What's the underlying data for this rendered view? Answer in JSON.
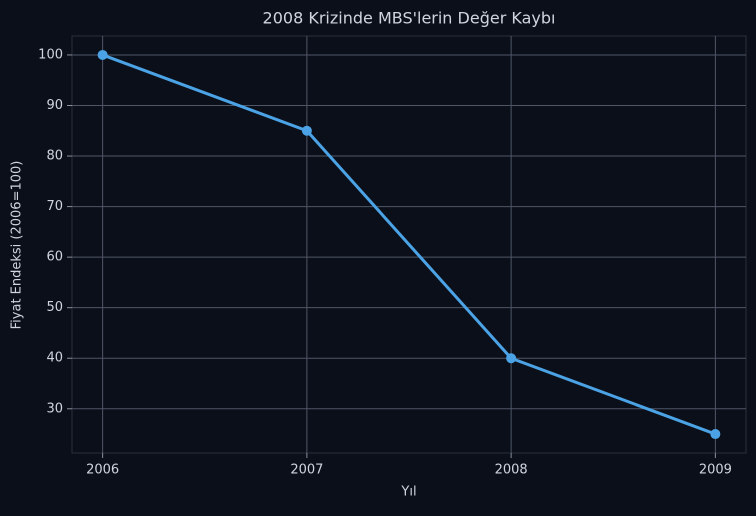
{
  "chart_data": {
    "type": "line",
    "title": "2008 Krizinde MBS'lerin Değer Kaybı",
    "x_label": "Yıl",
    "y_label": "Fiyat Endeksi (2006=100)",
    "x": [
      2006,
      2007,
      2008,
      2009
    ],
    "values": [
      100,
      85,
      40,
      25
    ],
    "color": "#4ba3e6",
    "xlim": [
      2005.85,
      2009.15
    ],
    "xticks": [
      2006,
      2007,
      2008,
      2009
    ],
    "ylim": [
      21.25,
      103.75
    ],
    "yticks": [
      30,
      40,
      50,
      60,
      70,
      80,
      90,
      100
    ],
    "grid": true
  }
}
